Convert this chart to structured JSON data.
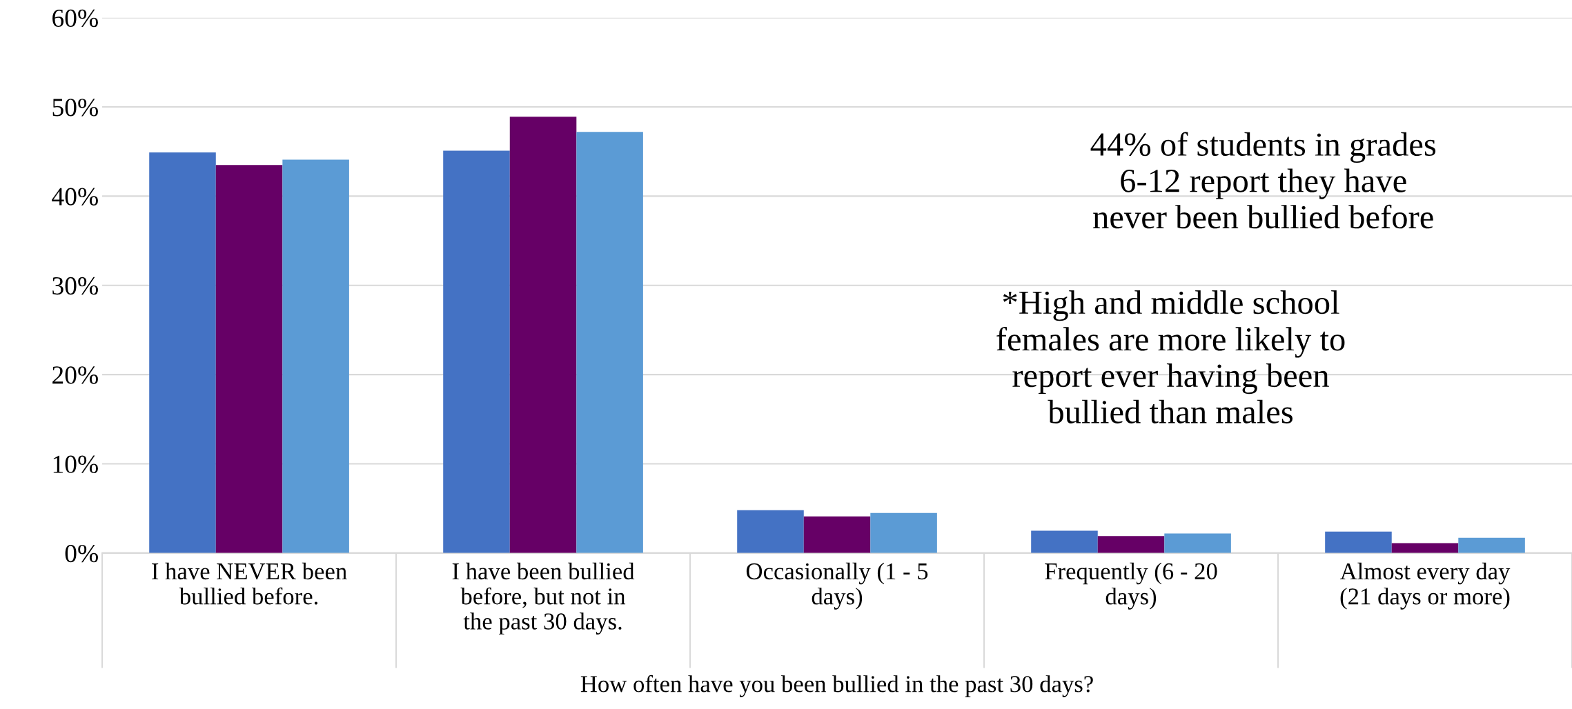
{
  "chart_data": {
    "type": "bar",
    "xlabel": "How often have you been bullied in the past 30 days?",
    "categories": [
      "I have NEVER been bullied before.",
      "I have been bullied before, but not in the past 30 days.",
      "Occasionally (1 - 5 days)",
      "Frequently (6 - 20 days)",
      "Almost every day (21 days or more)"
    ],
    "series": [
      {
        "color": "#4472c4",
        "values": [
          44.9,
          45.1,
          4.8,
          2.5,
          2.4
        ]
      },
      {
        "color": "#660066",
        "values": [
          43.5,
          48.9,
          4.1,
          1.9,
          1.1
        ]
      },
      {
        "color": "#5b9bd5",
        "values": [
          44.1,
          47.2,
          4.5,
          2.2,
          1.7
        ]
      }
    ],
    "ylim": [
      0,
      60
    ],
    "yticks": [
      {
        "value": 0,
        "label": "0%"
      },
      {
        "value": 10,
        "label": "10%"
      },
      {
        "value": 20,
        "label": "20%"
      },
      {
        "value": 30,
        "label": "30%"
      },
      {
        "value": 40,
        "label": "40%"
      },
      {
        "value": 50,
        "label": "50%"
      },
      {
        "value": 60,
        "label": "60%"
      }
    ],
    "grid": "y",
    "legend": false,
    "annotations": [
      "44% of students in grades 6-12 report they have never been bullied before",
      "*High and middle school females are more likely to report ever having been bullied than males"
    ]
  }
}
